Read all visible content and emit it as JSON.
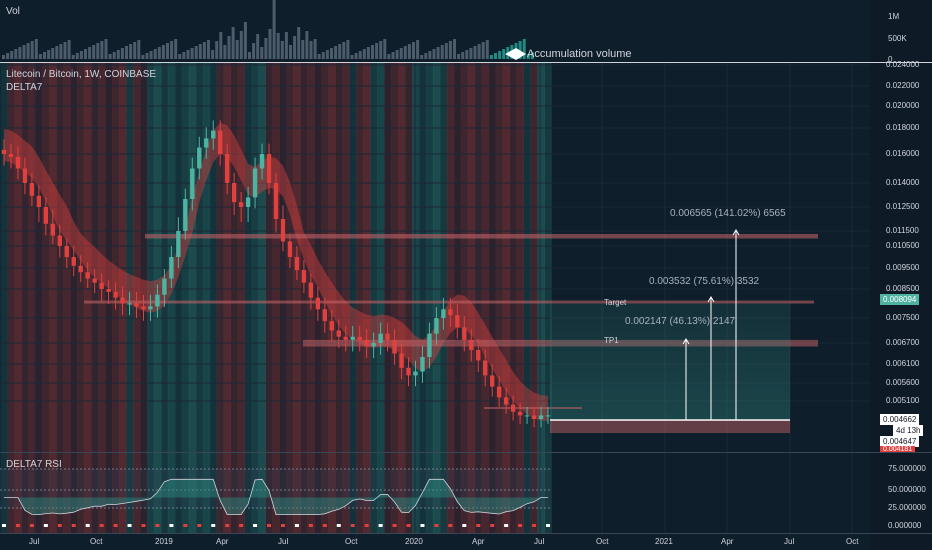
{
  "header": {
    "symbol_title": "Litecoin / Bitcoin, 1W, COINBASE",
    "indicator": "DELTA7",
    "volume_label": "Vol",
    "accumulation_label": "Accumulation volume",
    "rsi_label": "DELTA7 RSI"
  },
  "volume_axis": [
    "1M",
    "500K",
    "0"
  ],
  "price_axis": [
    "0.024000",
    "0.022000",
    "0.020000",
    "0.018000",
    "0.016000",
    "0.014000",
    "0.012500",
    "0.011500",
    "0.010500",
    "0.009500",
    "0.008500",
    "0.007500",
    "0.006700",
    "0.006100",
    "0.005600",
    "0.005100"
  ],
  "price_tags": {
    "current": "0.008094",
    "last": "0.004662",
    "countdown": "4d 13h",
    "low": "0.004647",
    "bottom": "0.004181"
  },
  "rsi_axis": [
    "75.000000",
    "50.000000",
    "25.000000",
    "0.000000"
  ],
  "time_axis": [
    "Jul",
    "Oct",
    "2019",
    "Apr",
    "Jul",
    "Oct",
    "2020",
    "Apr",
    "Jul",
    "Oct",
    "2021",
    "Apr",
    "Jul",
    "Oct"
  ],
  "zones": {
    "target": "Target",
    "tp1": "TP1"
  },
  "measures": {
    "m1": "0.002147 (46.13%) 2147",
    "m2": "0.003532 (75.61%) 3532",
    "m3": "0.006565 (141.02%) 6565"
  },
  "colors": {
    "background": "#0f1e2b",
    "bull": "#4fb3a1",
    "bear": "#e0413f",
    "band_red": "#b33a3a",
    "band_teal": "#2f8f83",
    "zone": "#c9666a"
  },
  "chart_data": {
    "type": "candlestick",
    "symbol": "Litecoin / Bitcoin",
    "timeframe": "1W",
    "exchange": "COINBASE",
    "x_ticks": [
      "Jul",
      "Oct",
      "2019",
      "Apr",
      "Jul",
      "Oct",
      "2020",
      "Apr",
      "Jul",
      "Oct",
      "2021",
      "Apr",
      "Jul",
      "Oct"
    ],
    "y_ticks": [
      0.024,
      0.022,
      0.02,
      0.018,
      0.016,
      0.014,
      0.0125,
      0.0115,
      0.0105,
      0.0095,
      0.0085,
      0.0075,
      0.0067,
      0.0061,
      0.0056,
      0.0051
    ],
    "close_series": [
      0.016,
      0.0158,
      0.015,
      0.014,
      0.0132,
      0.0125,
      0.0118,
      0.0112,
      0.0105,
      0.01,
      0.0096,
      0.0093,
      0.009,
      0.0088,
      0.0085,
      0.0084,
      0.0082,
      0.008,
      0.008,
      0.0079,
      0.0078,
      0.0079,
      0.0083,
      0.009,
      0.01,
      0.0115,
      0.013,
      0.015,
      0.0165,
      0.0172,
      0.0178,
      0.016,
      0.014,
      0.0128,
      0.0125,
      0.0131,
      0.015,
      0.016,
      0.014,
      0.012,
      0.0108,
      0.01,
      0.0094,
      0.0088,
      0.0082,
      0.0078,
      0.0074,
      0.0071,
      0.0069,
      0.0068,
      0.0069,
      0.0068,
      0.0066,
      0.0067,
      0.007,
      0.0068,
      0.0064,
      0.006,
      0.0058,
      0.0059,
      0.0063,
      0.007,
      0.0075,
      0.0078,
      0.0076,
      0.0072,
      0.0068,
      0.0065,
      0.0062,
      0.0058,
      0.0055,
      0.0052,
      0.005,
      0.0048,
      0.0047,
      0.0047,
      0.0046,
      0.0047,
      0.0047
    ],
    "zones": [
      {
        "label": "",
        "low": 0.011,
        "high": 0.0113
      },
      {
        "label": "Target",
        "low": 0.008,
        "high": 0.0081
      },
      {
        "label": "TP1",
        "low": 0.0066,
        "high": 0.0068
      },
      {
        "label": "",
        "low": 0.0044,
        "high": 0.0046
      }
    ],
    "measurements": [
      {
        "change": 0.002147,
        "percent": 46.13,
        "points": 2147
      },
      {
        "change": 0.003532,
        "percent": 75.61,
        "points": 3532
      },
      {
        "change": 0.006565,
        "percent": 141.02,
        "points": 6565
      }
    ],
    "rsi_ticks": [
      75,
      50,
      25,
      0
    ]
  }
}
